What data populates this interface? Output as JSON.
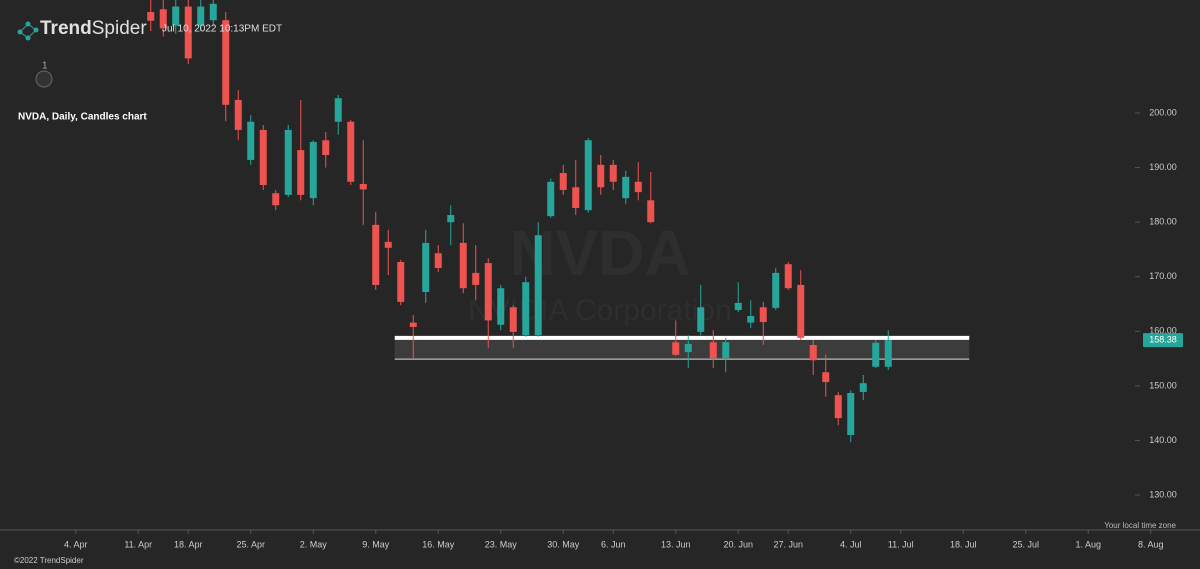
{
  "header": {
    "brand_bold": "Trend",
    "brand_light": "Spider",
    "timestamp": "Jul 10, 2022 10:13PM EDT",
    "badge": "1"
  },
  "footer": {
    "copyright": "©2022 TrendSpider",
    "timezone": "Your local time zone"
  },
  "chart_data": {
    "type": "candlestick",
    "title": "NVDA, Daily, Candles chart",
    "watermark": {
      "symbol": "NVDA",
      "name": "NVIDIA Corporation"
    },
    "categories": [
      null,
      null,
      null,
      null,
      null,
      "4. Apr",
      null,
      null,
      null,
      null,
      "11. Apr",
      null,
      null,
      null,
      "18. Apr",
      null,
      null,
      null,
      null,
      "25. Apr",
      null,
      null,
      null,
      null,
      "2. May",
      null,
      null,
      null,
      null,
      "9. May",
      null,
      null,
      null,
      null,
      "16. May",
      null,
      null,
      null,
      null,
      "23. May",
      null,
      null,
      null,
      null,
      "30. May",
      null,
      null,
      null,
      "6. Jun",
      null,
      null,
      null,
      null,
      "13. Jun",
      null,
      null,
      null,
      null,
      "20. Jun",
      null,
      null,
      null,
      "27. Jun",
      null,
      null,
      null,
      null,
      "4. Jul",
      null,
      null,
      null,
      "11. Jul",
      null,
      null,
      null,
      null,
      "18. Jul",
      null,
      null,
      null,
      null,
      "25. Jul",
      null,
      null,
      null,
      null,
      "1. Aug",
      null,
      null,
      null,
      null,
      "8. Aug",
      null
    ],
    "open": [
      null,
      null,
      null,
      null,
      null,
      null,
      null,
      null,
      null,
      null,
      null,
      218.5,
      219,
      216,
      219.5,
      216,
      217,
      217,
      202.4,
      191.4,
      196.9,
      185.3,
      185,
      193.2,
      184.4,
      195,
      198.4,
      198.4,
      187,
      179.5,
      176.4,
      172.7,
      161.6,
      167.2,
      174.3,
      180,
      176.2,
      170.7,
      172.5,
      161.2,
      164.4,
      159.3,
      159.3,
      181.1,
      189,
      186.4,
      182.2,
      190.5,
      190.5,
      184.4,
      187.4,
      184,
      null,
      158,
      156.2,
      159.9,
      158,
      155.1,
      163.9,
      161.6,
      164.4,
      164.3,
      172.3,
      168.5,
      157.5,
      152.5,
      148.3,
      141,
      148.9,
      153.5,
      153.5,
      null,
      null,
      null,
      null,
      null,
      null,
      null,
      null,
      null,
      null,
      null,
      null,
      null,
      null,
      null,
      null,
      null,
      null,
      null,
      null,
      null,
      null
    ],
    "high": [
      null,
      null,
      null,
      null,
      null,
      null,
      null,
      null,
      null,
      null,
      null,
      221.5,
      222,
      221,
      222,
      221,
      222,
      218.5,
      204.2,
      199.6,
      197.8,
      185.9,
      197.8,
      202.4,
      195,
      196.5,
      203.3,
      198.7,
      195,
      181.9,
      178.6,
      173.1,
      163,
      178.6,
      175.8,
      183.1,
      179.8,
      175.8,
      173.4,
      168.5,
      164.8,
      170,
      180,
      188,
      190.5,
      191.4,
      195.4,
      192.3,
      191.4,
      189.4,
      191,
      189.2,
      null,
      162,
      159.3,
      168.5,
      160.2,
      158.8,
      169,
      165.7,
      165.4,
      171.6,
      172.7,
      171.2,
      158.4,
      155.7,
      148.9,
      149.2,
      152,
      158.4,
      160.2,
      null,
      null,
      null,
      null,
      null,
      null,
      null,
      null,
      null,
      null,
      null,
      null,
      null,
      null,
      null,
      null,
      null,
      null,
      null,
      null,
      null,
      null
    ],
    "low": [
      null,
      null,
      null,
      null,
      null,
      null,
      null,
      null,
      null,
      null,
      null,
      215,
      214,
      214.5,
      209,
      215,
      216,
      198.5,
      195,
      190.5,
      185.9,
      182.2,
      184.6,
      184,
      183.1,
      190,
      196,
      186.8,
      179.5,
      167.6,
      170.3,
      164.8,
      155.1,
      165.2,
      170.9,
      175.8,
      167,
      165.7,
      157,
      160.2,
      157,
      159,
      159,
      180.8,
      185,
      181.3,
      181.7,
      185,
      185.9,
      183.3,
      184,
      179.8,
      null,
      155.5,
      153.3,
      159.3,
      153.3,
      152.5,
      163.5,
      160.6,
      157.5,
      163.9,
      167.6,
      158.4,
      152,
      148,
      142.8,
      139.7,
      147.4,
      153.3,
      152.9,
      null,
      null,
      null,
      null,
      null,
      null,
      null,
      null,
      null,
      null,
      null,
      null,
      null,
      null,
      null,
      null,
      null,
      null,
      null,
      null,
      null,
      null
    ],
    "close": [
      null,
      null,
      null,
      null,
      null,
      null,
      null,
      null,
      null,
      null,
      null,
      216.9,
      215.5,
      219.5,
      210,
      219.5,
      220,
      201.5,
      196.9,
      198.4,
      186.8,
      183.1,
      196.9,
      185,
      194.7,
      192.3,
      202.7,
      187.4,
      186,
      168.5,
      175.3,
      165.4,
      160.8,
      176.2,
      171.6,
      181.3,
      167.9,
      168.5,
      162,
      167.9,
      159.9,
      169,
      177.6,
      187.4,
      185.9,
      182.6,
      195,
      186.4,
      187.4,
      188.3,
      185.5,
      180,
      null,
      155.7,
      157.7,
      164.4,
      155.1,
      158,
      165.2,
      162.8,
      161.7,
      170.7,
      167.9,
      158.8,
      154.7,
      150.7,
      144.1,
      148.7,
      150.5,
      157.9,
      158.38,
      null,
      null,
      null,
      null,
      null,
      null,
      null,
      null,
      null,
      null,
      null,
      null,
      null,
      null,
      null,
      null,
      null,
      null,
      null,
      null,
      null,
      null
    ],
    "up_color": "#26a69a",
    "down_color": "#ef5350",
    "last_price": 158.38,
    "zone": [
      154.9,
      158.8
    ],
    "ylim": [
      123.6,
      220.7
    ],
    "yticks": [
      {
        "value": 130,
        "label": "130.00"
      },
      {
        "value": 140,
        "label": "140.00"
      },
      {
        "value": 150,
        "label": "150.00"
      },
      {
        "value": 160,
        "label": "160.00"
      },
      {
        "value": 170,
        "label": "170.00"
      },
      {
        "value": 180,
        "label": "180.00"
      },
      {
        "value": 190,
        "label": "190.00"
      },
      {
        "value": 200,
        "label": "200.00"
      }
    ]
  }
}
